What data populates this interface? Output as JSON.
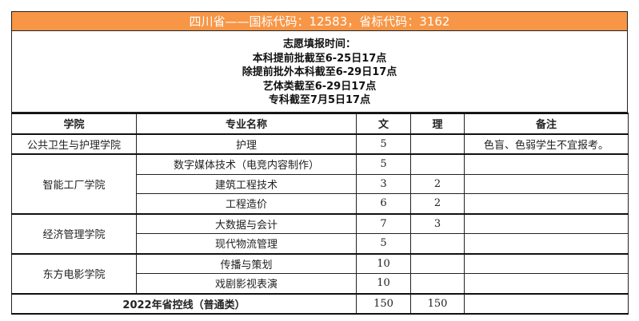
{
  "title": "四川省——国标代码：12583，省标代码：3162",
  "notice": [
    "志愿填报时间：",
    "本科提前批截至6-25日17点",
    "除提前批外本科截至6-29日17点",
    "艺体类截至6-29日17点",
    "专科截至7月5日17点"
  ],
  "headers": [
    "学院",
    "专业名称",
    "文",
    "理",
    "备注"
  ],
  "groups": [
    {
      "college": "公共卫生与护理学院",
      "rows": [
        {
          "major": "护理",
          "wen": "5",
          "li": "",
          "note": "色盲、色弱学生不宜报考。"
        }
      ]
    },
    {
      "college": "智能工厂学院",
      "rows": [
        {
          "major": "数字媒体技术（电竞内容制作）",
          "wen": "5",
          "li": "",
          "note": ""
        },
        {
          "major": "建筑工程技术",
          "wen": "3",
          "li": "2",
          "note": ""
        },
        {
          "major": "工程造价",
          "wen": "6",
          "li": "2",
          "note": ""
        }
      ]
    },
    {
      "college": "经济管理学院",
      "rows": [
        {
          "major": "大数据与会计",
          "wen": "7",
          "li": "3",
          "note": ""
        },
        {
          "major": "现代物流管理",
          "wen": "5",
          "li": "",
          "note": ""
        }
      ]
    },
    {
      "college": "东方电影学院",
      "rows": [
        {
          "major": "传播与策划",
          "wen": "10",
          "li": "",
          "note": ""
        },
        {
          "major": "戏剧影视表演",
          "wen": "10",
          "li": "",
          "note": ""
        }
      ]
    }
  ],
  "total": {
    "label": "2022年省控线（普通类）",
    "wen": "150",
    "li": "150",
    "note": ""
  },
  "colors": {
    "title_bg": "#f79646"
  }
}
